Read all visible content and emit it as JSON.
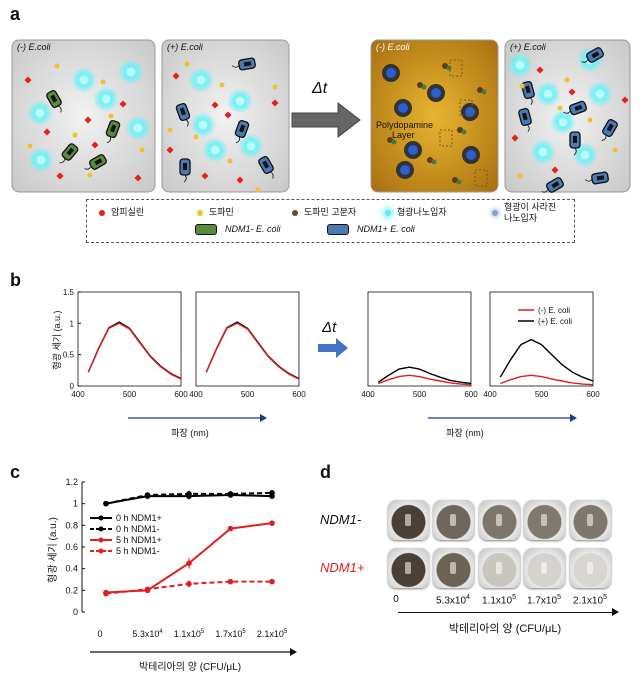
{
  "panel_labels": {
    "a": "a",
    "b": "b",
    "c": "c",
    "d": "d"
  },
  "panel_a": {
    "boxes": [
      {
        "label": "(-) E.coli",
        "bg": "#d8d8d8"
      },
      {
        "label": "(+) E.coli",
        "bg": "#d8d8d8"
      },
      {
        "label": "(-) E.coli",
        "bg": "#b8830f"
      },
      {
        "label": "(+) E.coli",
        "bg": "#d8d8d8"
      }
    ],
    "arrow_label": "Δt",
    "polydopamine_label": "Polydopamine\nLayer",
    "legend": [
      {
        "text": "암피실린",
        "color": "#e52020",
        "icon": "red-dot-icon"
      },
      {
        "text": "도파민",
        "color": "#f2c030",
        "icon": "yellow-dot-icon"
      },
      {
        "text": "도파민 고분자",
        "color": "#6a4a2a",
        "icon": "brown-dot-icon"
      },
      {
        "text": "형광나노입자",
        "color": "#5fe8f0",
        "icon": "glowing-nanoparticle-icon"
      },
      {
        "text": "형광이 사라진\n나노입자",
        "color": "#8aa0c8",
        "icon": "quenched-nanoparticle-icon"
      },
      {
        "text": "NDM1- E. coli",
        "color": "#5a8a3a",
        "icon": "green-bacteria-icon"
      },
      {
        "text": "NDM1+ E. coli",
        "color": "#4a7ab0",
        "icon": "blue-bacteria-icon"
      }
    ]
  },
  "panel_b": {
    "arrow_label": "Δt",
    "ylabel": "형광 세기 (a.u.)",
    "xlabel_left": "파장 (nm)",
    "xlabel_right": "파장 (nm)",
    "legend": [
      "(-) E. coli",
      "(+) E. coli"
    ]
  },
  "chart_data": [
    {
      "type": "line",
      "title": "",
      "xlabel": "파장 (nm)",
      "ylabel": "형광 세기 (a.u.)",
      "xlim": [
        400,
        600
      ],
      "ylim": [
        0,
        1.5
      ],
      "xticks": [
        400,
        500,
        600
      ],
      "yticks": [
        0,
        0.5,
        1,
        1.5
      ],
      "series": [
        {
          "color": "#000000",
          "x": [
            420,
            440,
            460,
            480,
            500,
            520,
            540,
            560,
            580,
            600
          ],
          "y": [
            0.22,
            0.6,
            0.93,
            1.02,
            0.92,
            0.7,
            0.48,
            0.32,
            0.2,
            0.12
          ]
        },
        {
          "color": "#e02020",
          "x": [
            420,
            440,
            460,
            480,
            500,
            520,
            540,
            560,
            580,
            600
          ],
          "y": [
            0.22,
            0.59,
            0.92,
            1.0,
            0.91,
            0.69,
            0.47,
            0.31,
            0.19,
            0.11
          ]
        }
      ]
    },
    {
      "type": "line",
      "title": "",
      "xlim": [
        400,
        600
      ],
      "ylim": [
        0,
        1.5
      ],
      "xticks": [
        400,
        500,
        600
      ],
      "series": [
        {
          "color": "#000000",
          "x": [
            420,
            440,
            460,
            480,
            500,
            520,
            540,
            560,
            580,
            600
          ],
          "y": [
            0.22,
            0.6,
            0.93,
            1.02,
            0.92,
            0.7,
            0.48,
            0.32,
            0.2,
            0.12
          ]
        },
        {
          "color": "#e02020",
          "x": [
            420,
            440,
            460,
            480,
            500,
            520,
            540,
            560,
            580,
            600
          ],
          "y": [
            0.22,
            0.59,
            0.92,
            1.0,
            0.91,
            0.69,
            0.47,
            0.31,
            0.19,
            0.11
          ]
        }
      ]
    },
    {
      "type": "line",
      "title": "",
      "xlim": [
        400,
        600
      ],
      "ylim": [
        0,
        1.5
      ],
      "xticks": [
        400,
        500,
        600
      ],
      "series": [
        {
          "color": "#000000",
          "x": [
            420,
            440,
            460,
            480,
            500,
            520,
            540,
            560,
            580,
            600
          ],
          "y": [
            0.06,
            0.17,
            0.27,
            0.3,
            0.27,
            0.2,
            0.14,
            0.09,
            0.06,
            0.04
          ]
        },
        {
          "color": "#e02020",
          "x": [
            420,
            440,
            460,
            480,
            500,
            520,
            540,
            560,
            580,
            600
          ],
          "y": [
            0.04,
            0.1,
            0.15,
            0.17,
            0.15,
            0.11,
            0.08,
            0.05,
            0.03,
            0.02
          ]
        }
      ]
    },
    {
      "type": "line",
      "title": "",
      "xlim": [
        400,
        600
      ],
      "ylim": [
        0,
        1.5
      ],
      "xticks": [
        400,
        500,
        600
      ],
      "series": [
        {
          "name": "(-) E. coli",
          "color": "#e02020",
          "x": [
            420,
            440,
            460,
            480,
            500,
            520,
            540,
            560,
            580,
            600
          ],
          "y": [
            0.04,
            0.1,
            0.15,
            0.17,
            0.15,
            0.11,
            0.08,
            0.05,
            0.03,
            0.02
          ]
        },
        {
          "name": "(+) E. coli",
          "color": "#000000",
          "x": [
            420,
            440,
            460,
            480,
            500,
            520,
            540,
            560,
            580,
            600
          ],
          "y": [
            0.14,
            0.42,
            0.66,
            0.74,
            0.66,
            0.5,
            0.34,
            0.22,
            0.14,
            0.08
          ]
        }
      ]
    },
    {
      "type": "line",
      "title": "",
      "xlabel": "박테리아의 양 (CFU/μL)",
      "ylabel": "형광 세기 (a.u.)",
      "categories": [
        "0",
        "5.3x10^4",
        "1.1x10^5",
        "1.7x10^5",
        "2.1x10^5"
      ],
      "ylim": [
        0,
        1.2
      ],
      "yticks": [
        0,
        0.2,
        0.4,
        0.6,
        0.8,
        1,
        1.2
      ],
      "legend_position": "left",
      "series": [
        {
          "name": "0 h NDM1+",
          "color": "#000000",
          "dash": false,
          "values": [
            1.0,
            1.07,
            1.07,
            1.08,
            1.07
          ]
        },
        {
          "name": "0 h NDM1-",
          "color": "#000000",
          "dash": true,
          "values": [
            1.0,
            1.08,
            1.09,
            1.09,
            1.1
          ]
        },
        {
          "name": "5 h NDM1+",
          "color": "#e02020",
          "dash": false,
          "values": [
            0.18,
            0.2,
            0.45,
            0.77,
            0.82
          ]
        },
        {
          "name": "5 h NDM1-",
          "color": "#e02020",
          "dash": true,
          "values": [
            0.17,
            0.21,
            0.26,
            0.28,
            0.28
          ]
        }
      ]
    }
  ],
  "panel_d": {
    "row_labels": [
      {
        "text": "NDM1-",
        "color": "#111111"
      },
      {
        "text": "NDM1+",
        "color": "#e02020"
      }
    ],
    "categories": [
      "0",
      "5.3x10",
      "1.1x10",
      "1.7x10",
      "2.1x10"
    ],
    "exponents": [
      "",
      "4",
      "5",
      "5",
      "5"
    ],
    "xlabel": "박테리아의 양 (CFU/μL)"
  }
}
